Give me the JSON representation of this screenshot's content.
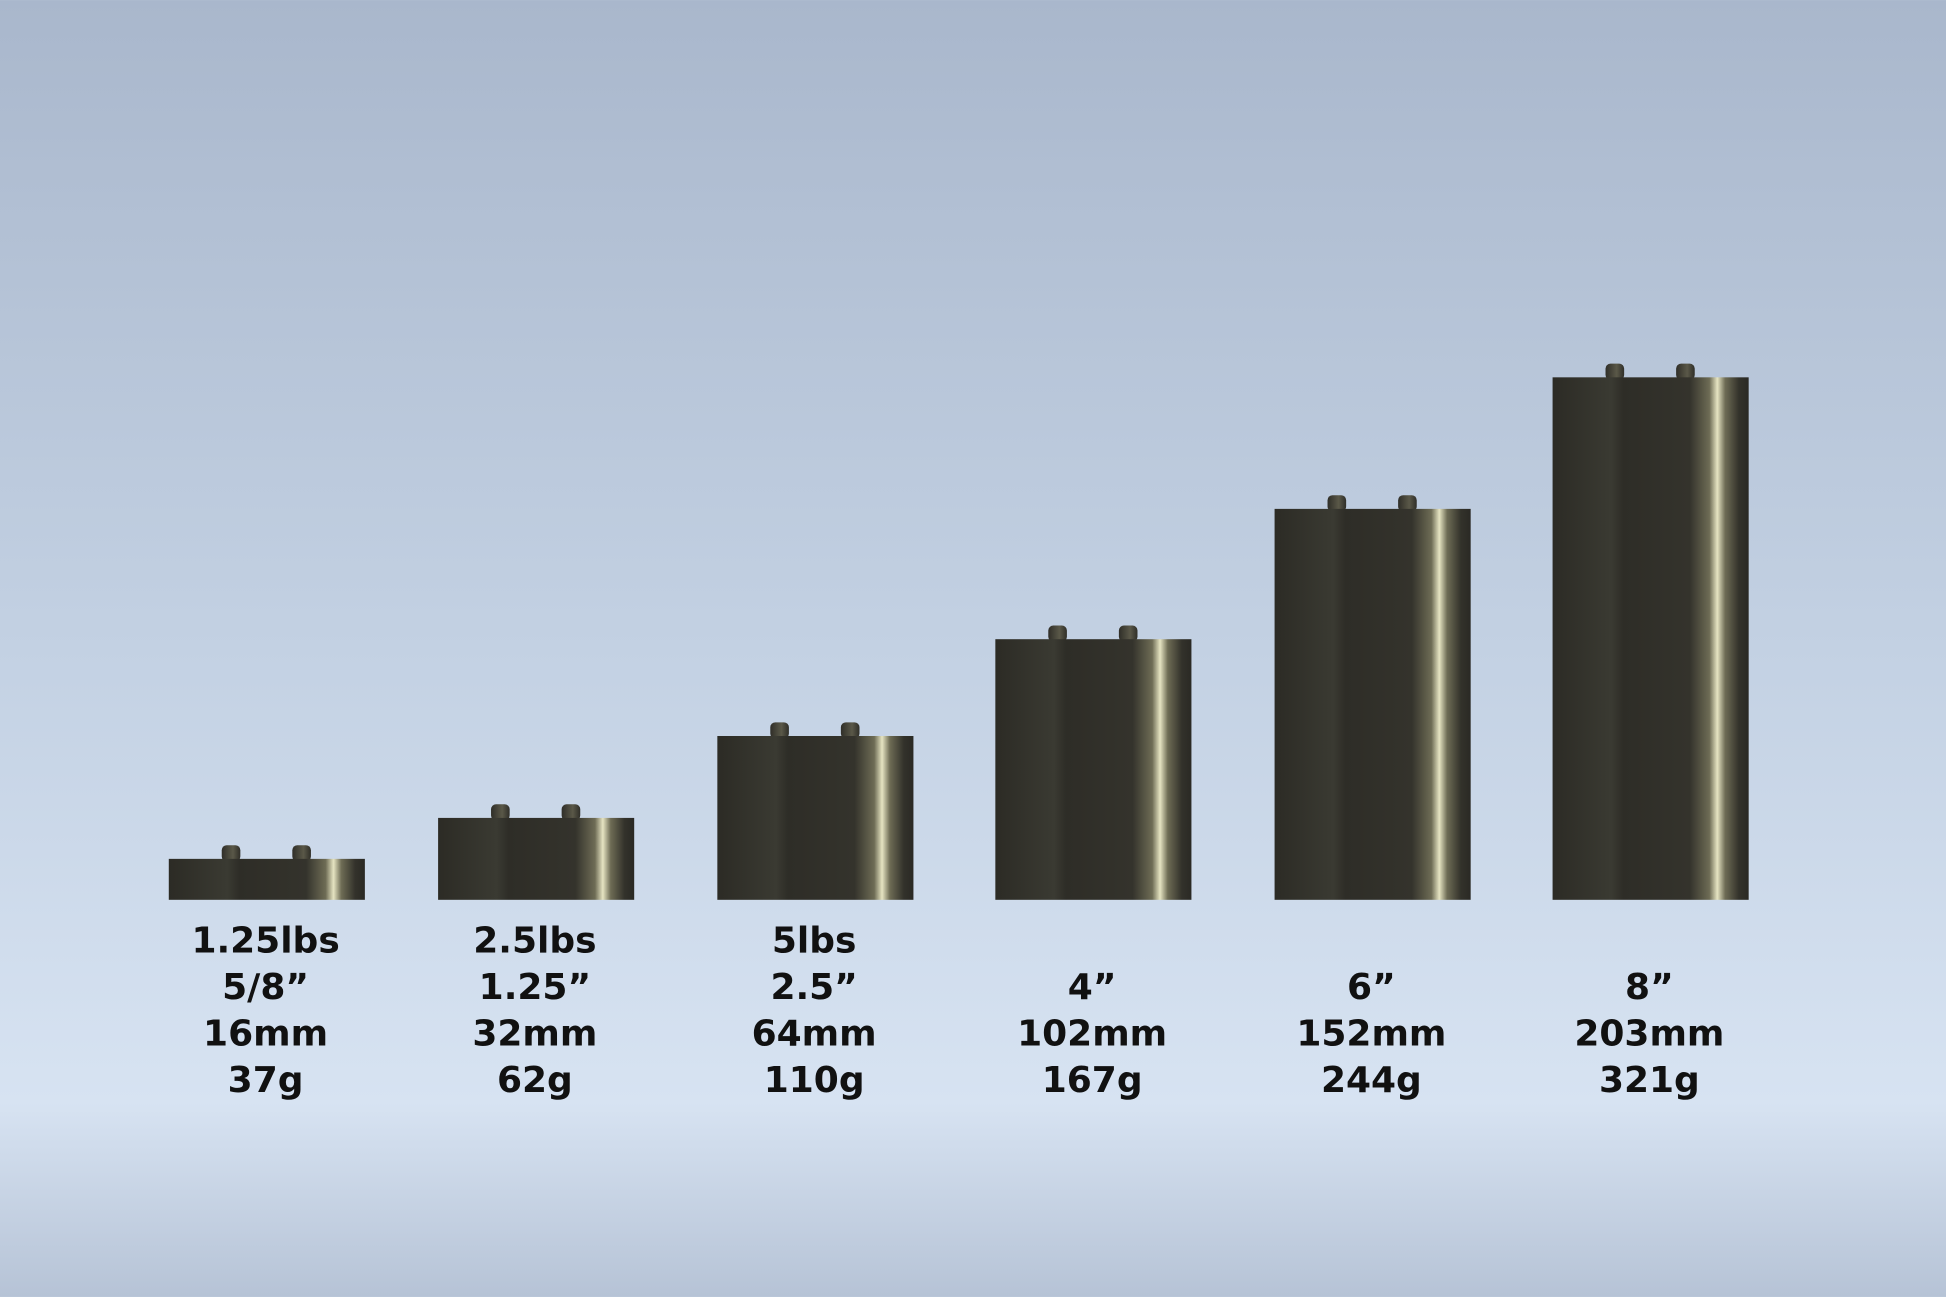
{
  "items": [
    {
      "lines": [
        "1.25lbs",
        "5/8”",
        "16mm",
        "37g"
      ]
    },
    {
      "lines": [
        "2.5lbs",
        "1.25”",
        "32mm",
        "62g"
      ]
    },
    {
      "lines": [
        "5lbs",
        "2.5”",
        "64mm",
        "110g"
      ]
    },
    {
      "lines": [
        "4”",
        "102mm",
        "167g"
      ]
    },
    {
      "lines": [
        "6”",
        "152mm",
        "244g"
      ]
    },
    {
      "lines": [
        "8”",
        "203mm",
        "321g"
      ]
    }
  ]
}
